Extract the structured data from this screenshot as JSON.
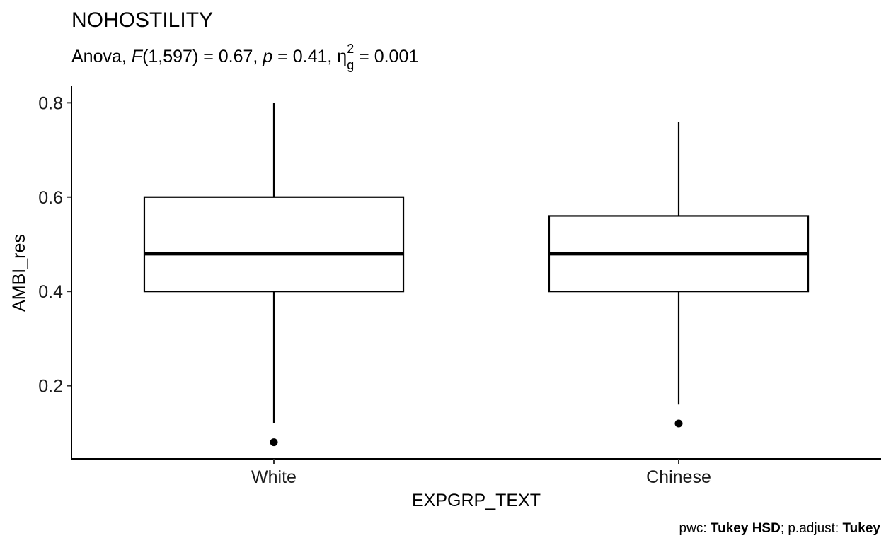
{
  "chart_data": {
    "type": "boxplot",
    "title": "NOHOSTILITY",
    "subtitle": {
      "prefix": "Anova, ",
      "f_symbol": "F",
      "f_args": "(1,597) = 0.67, ",
      "p_symbol": "p",
      "p_value": " = 0.41, ",
      "eta": "η",
      "eta_sub": "g",
      "eta_sup": "2",
      "eta_value": " = 0.001"
    },
    "xlabel": "EXPGRP_TEXT",
    "ylabel": "AMBI_res",
    "ylim": [
      0.045,
      0.835
    ],
    "yticks": [
      0.2,
      0.4,
      0.6,
      0.8
    ],
    "ytick_labels": [
      "0.2",
      "0.4",
      "0.6",
      "0.8"
    ],
    "categories": [
      "White",
      "Chinese"
    ],
    "boxes": [
      {
        "category": "White",
        "whisker_low": 0.12,
        "q1": 0.4,
        "median": 0.48,
        "q3": 0.6,
        "whisker_high": 0.8,
        "outliers": [
          0.08
        ]
      },
      {
        "category": "Chinese",
        "whisker_low": 0.16,
        "q1": 0.4,
        "median": 0.48,
        "q3": 0.56,
        "whisker_high": 0.76,
        "outliers": [
          0.12
        ]
      }
    ],
    "grid": false,
    "caption": {
      "pwc_label": "pwc: ",
      "pwc_value": "Tukey HSD",
      "sep": "; p.adjust: ",
      "adjust_value": "Tukey"
    }
  }
}
